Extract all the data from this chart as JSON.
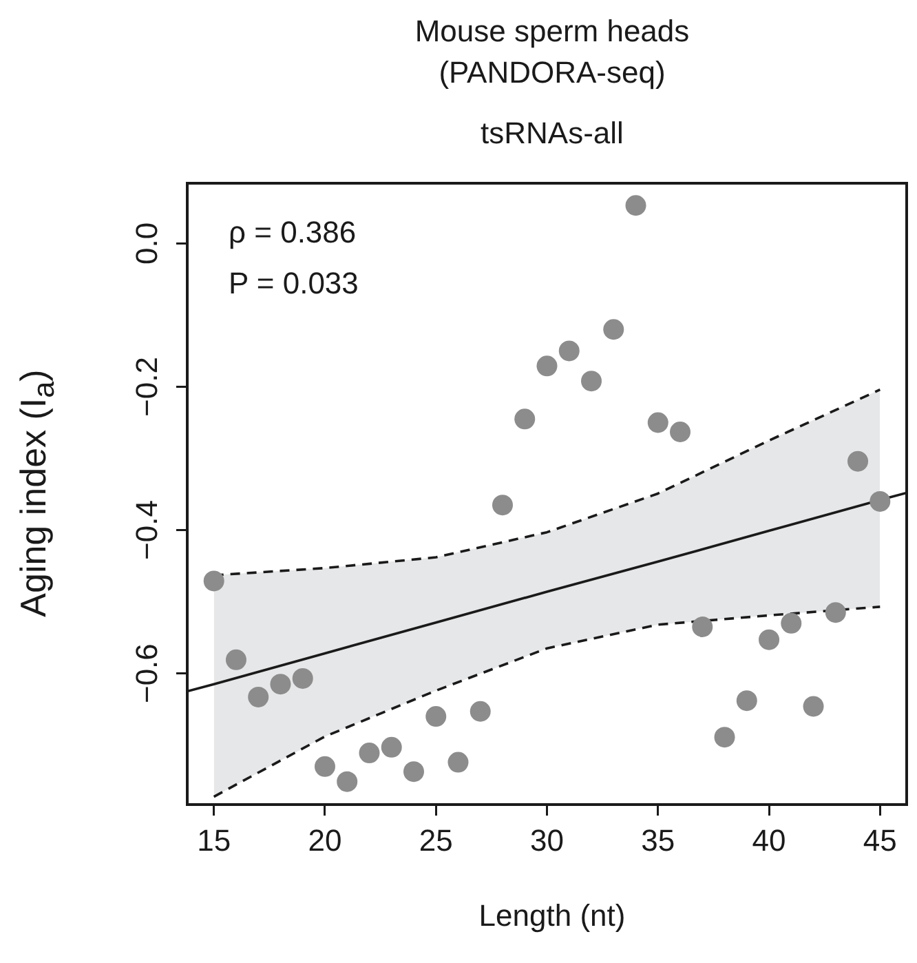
{
  "chart_data": {
    "type": "scatter",
    "title": "Mouse sperm heads\n(PANDORA-seq)",
    "subtitle": "tsRNAs-all",
    "xlabel": "Length (nt)",
    "ylabel": "Aging index (I$_{a}$)",
    "annotations": [
      "ρ = 0.386",
      "P = 0.033"
    ],
    "xlim": [
      13.8,
      46.2
    ],
    "ylim": [
      -0.783,
      0.084
    ],
    "xticks": [
      15,
      20,
      25,
      30,
      35,
      40,
      45
    ],
    "yticks": [
      {
        "value": 0,
        "label": "0.0"
      },
      {
        "value": -0.2,
        "label": "−0.2"
      },
      {
        "value": -0.4,
        "label": "−0.4"
      },
      {
        "value": -0.6,
        "label": "−0.6"
      }
    ],
    "grid": false,
    "legend": false,
    "marker": "circle",
    "series": [
      {
        "color": "#8c8c8c",
        "x": [
          15,
          16,
          17,
          18,
          19,
          20,
          21,
          22,
          23,
          24,
          25,
          26,
          27,
          28,
          29,
          30,
          31,
          32,
          33,
          34,
          35,
          36,
          37,
          38,
          39,
          40,
          41,
          42,
          43,
          44,
          45
        ],
        "values": [
          -0.471,
          -0.581,
          -0.633,
          -0.615,
          -0.607,
          -0.73,
          -0.751,
          -0.711,
          -0.703,
          -0.737,
          -0.66,
          -0.724,
          -0.653,
          -0.365,
          -0.245,
          -0.171,
          -0.15,
          -0.192,
          -0.12,
          0.053,
          -0.25,
          -0.263,
          -0.535,
          -0.689,
          -0.638,
          -0.553,
          -0.53,
          -0.646,
          -0.515,
          -0.304,
          -0.36
        ]
      },
      {
        "type": "line",
        "color": "#1a1a1a",
        "line_style": "solid",
        "marker": "none",
        "x": [
          13.8,
          15,
          20,
          25,
          30,
          35,
          40,
          45,
          46.2
        ],
        "values": [
          -0.625,
          -0.615,
          -0.572,
          -0.529,
          -0.486,
          -0.444,
          -0.401,
          -0.358,
          -0.348
        ],
        "lower": [
          null,
          -0.772,
          -0.688,
          -0.624,
          -0.565,
          -0.532,
          -0.519,
          -0.507,
          null
        ],
        "upper": [
          null,
          -0.463,
          -0.453,
          -0.438,
          -0.403,
          -0.349,
          -0.275,
          -0.204,
          null
        ]
      },
      {
        "type": "line",
        "color": "#1a1a1a",
        "line_style": "dashed",
        "marker": "none",
        "x": [
          15,
          20,
          25,
          30,
          35,
          40,
          45
        ],
        "values": [
          -0.772,
          -0.688,
          -0.624,
          -0.565,
          -0.532,
          -0.519,
          -0.507
        ]
      },
      {
        "type": "line",
        "color": "#1a1a1a",
        "line_style": "dashed",
        "marker": "none",
        "x": [
          15,
          20,
          25,
          30,
          35,
          40,
          45
        ],
        "values": [
          -0.463,
          -0.453,
          -0.438,
          -0.403,
          -0.349,
          -0.275,
          -0.204
        ]
      }
    ]
  }
}
